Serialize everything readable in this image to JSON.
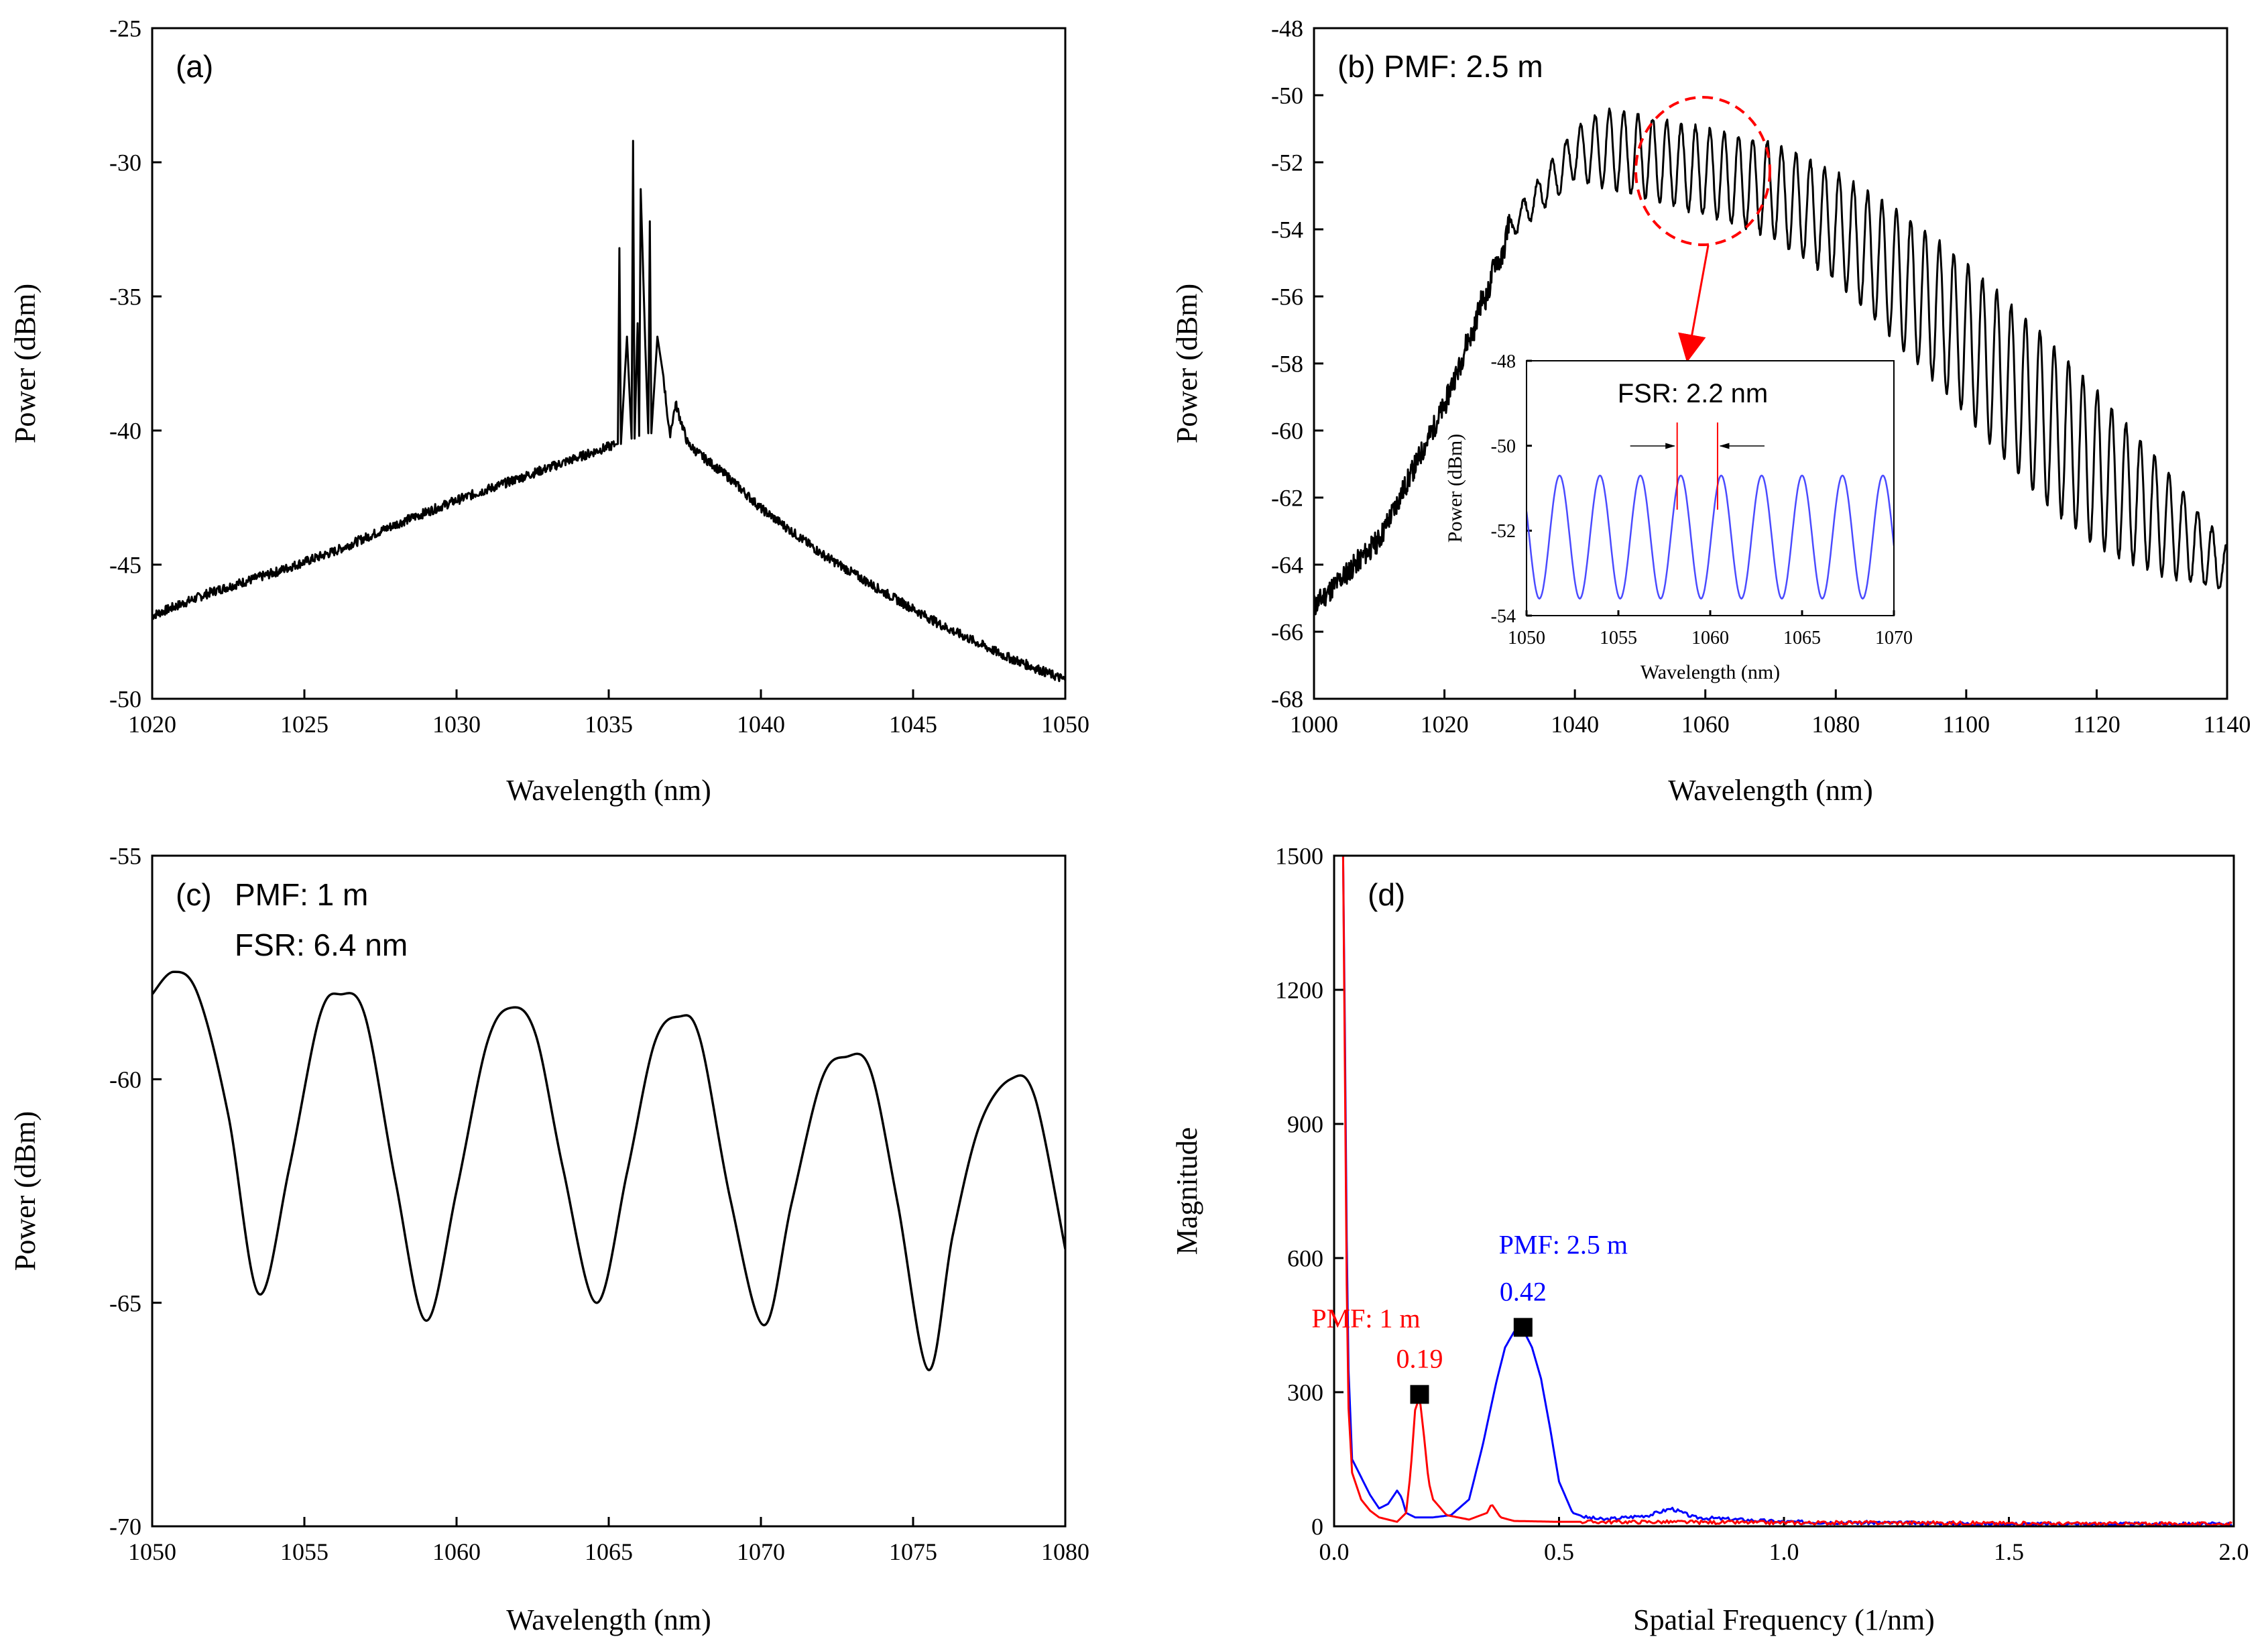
{
  "chart_data": [
    {
      "type": "line",
      "panel": "(a)",
      "xlabel": "Wavelength (nm)",
      "ylabel": "Power (dBm)",
      "xlim": [
        1020,
        1050
      ],
      "ylim": [
        -50,
        -25
      ],
      "xticks": [
        1020,
        1025,
        1030,
        1035,
        1040,
        1045,
        1050
      ],
      "yticks": [
        -50,
        -45,
        -40,
        -35,
        -30,
        -25
      ],
      "series": [
        {
          "color": "#000000",
          "x": [
            1020,
            1022,
            1024,
            1026,
            1028,
            1030,
            1032,
            1034,
            1035,
            1035.3,
            1035.35,
            1035.4,
            1035.6,
            1035.75,
            1035.8,
            1035.85,
            1035.95,
            1036.0,
            1036.05,
            1036.2,
            1036.3,
            1036.35,
            1036.4,
            1036.6,
            1036.8,
            1037.0,
            1037.2,
            1037.6,
            1038,
            1039,
            1040,
            1042,
            1044,
            1046,
            1048,
            1050
          ],
          "y": [
            -46.9,
            -46.0,
            -45.3,
            -44.5,
            -43.5,
            -42.6,
            -41.8,
            -41.0,
            -40.6,
            -40.5,
            -33.2,
            -40.5,
            -36.5,
            -40.3,
            -29.2,
            -40.3,
            -36.0,
            -40.2,
            -31.0,
            -36.8,
            -40.1,
            -32.2,
            -40.1,
            -36.5,
            -38.0,
            -40.2,
            -39.0,
            -40.5,
            -40.9,
            -41.8,
            -42.9,
            -44.6,
            -46.0,
            -47.3,
            -48.4,
            -49.3
          ]
        }
      ],
      "annotations": []
    },
    {
      "type": "line",
      "panel": "(b) PMF: 2.5 m",
      "xlabel": "Wavelength (nm)",
      "ylabel": "Power (dBm)",
      "xlim": [
        1000,
        1140
      ],
      "ylim": [
        -68,
        -48
      ],
      "xticks": [
        1000,
        1020,
        1040,
        1060,
        1080,
        1100,
        1120,
        1140
      ],
      "yticks": [
        -68,
        -66,
        -64,
        -62,
        -60,
        -58,
        -56,
        -54,
        -52,
        -50,
        -48
      ],
      "series": [
        {
          "color": "#000000",
          "x": [
            1000,
            1010,
            1020,
            1030,
            1040,
            1045,
            1050,
            1060,
            1070,
            1080,
            1090,
            1100,
            1110,
            1120,
            1130,
            1140
          ],
          "y_envelope_top": [
            -65.0,
            -63.0,
            -59.0,
            -53.5,
            -51.0,
            -50.4,
            -50.6,
            -51.0,
            -51.4,
            -52.3,
            -53.5,
            -55.0,
            -56.8,
            -58.8,
            -61.0,
            -63.5
          ],
          "y_envelope_bottom": [
            -65.5,
            -63.5,
            -59.5,
            -54.5,
            -52.5,
            -52.8,
            -53.0,
            -53.6,
            -54.2,
            -55.5,
            -57.5,
            -59.5,
            -61.8,
            -63.5,
            -64.3,
            -64.8
          ],
          "fringe_period_nm": 2.2
        }
      ],
      "annotations": [
        "PMF: 2.5 m"
      ],
      "inset": {
        "title": "FSR: 2.2 nm",
        "xlabel": "Wavelength (nm)",
        "ylabel": "Power (dBm)",
        "xlim": [
          1050,
          1070
        ],
        "ylim": [
          -54,
          -48
        ],
        "xticks": [
          1050,
          1055,
          1060,
          1065,
          1070
        ],
        "yticks": [
          -54,
          -52,
          -50,
          -48
        ],
        "series": [
          {
            "color": "#4a4aff",
            "period_nm": 2.2,
            "y_top": -50.7,
            "y_bottom": -53.6
          }
        ],
        "markers_x": [
          1058.2,
          1060.4
        ]
      }
    },
    {
      "type": "line",
      "panel": "(c)",
      "xlabel": "Wavelength (nm)",
      "ylabel": "Power (dBm)",
      "xlim": [
        1050,
        1080
      ],
      "ylim": [
        -70,
        -55
      ],
      "xticks": [
        1050,
        1055,
        1060,
        1065,
        1070,
        1075,
        1080
      ],
      "yticks": [
        -70,
        -65,
        -60,
        -55
      ],
      "annotations": [
        "PMF: 1 m",
        "FSR: 6.4 nm"
      ],
      "series": [
        {
          "color": "#000000",
          "x": [
            1050,
            1050.7,
            1051.5,
            1052.5,
            1053.5,
            1054.5,
            1055.5,
            1056.2,
            1057.0,
            1058.0,
            1059.0,
            1060.0,
            1061.0,
            1061.8,
            1062.6,
            1063.5,
            1064.6,
            1065.6,
            1066.5,
            1067.3,
            1068.0,
            1069.0,
            1070.1,
            1071.0,
            1072.0,
            1072.8,
            1073.6,
            1074.5,
            1075.5,
            1076.3,
            1077.2,
            1078.2,
            1079.0,
            1080.0
          ],
          "y": [
            -58.1,
            -57.6,
            -58.1,
            -60.8,
            -64.8,
            -62.0,
            -58.6,
            -58.1,
            -58.6,
            -62.3,
            -65.4,
            -62.5,
            -59.2,
            -58.4,
            -59.0,
            -62.0,
            -65.0,
            -62.1,
            -59.2,
            -58.6,
            -59.1,
            -62.7,
            -65.5,
            -62.8,
            -60.0,
            -59.5,
            -59.8,
            -62.8,
            -66.5,
            -63.5,
            -61.0,
            -60.0,
            -60.4,
            -63.8
          ]
        }
      ]
    },
    {
      "type": "line",
      "panel": "(d)",
      "xlabel": "Spatial Frequency (1/nm)",
      "ylabel": "Magnitude",
      "xlim": [
        0,
        2.0
      ],
      "ylim": [
        0,
        1500
      ],
      "xticks": [
        0.0,
        0.5,
        1.0,
        1.5,
        2.0
      ],
      "yticks": [
        0,
        300,
        600,
        900,
        1200,
        1500
      ],
      "series": [
        {
          "name": "PMF: 2.5 m",
          "color": "#0000ff",
          "x": [
            0.02,
            0.025,
            0.03,
            0.04,
            0.06,
            0.08,
            0.1,
            0.12,
            0.14,
            0.15,
            0.16,
            0.18,
            0.22,
            0.26,
            0.3,
            0.33,
            0.36,
            0.38,
            0.4,
            0.42,
            0.44,
            0.46,
            0.48,
            0.5,
            0.53,
            0.56,
            0.6,
            0.7,
            0.75,
            0.8,
            0.9,
            1.0,
            1.2,
            1.5,
            1.8,
            2.0
          ],
          "y": [
            1500,
            1000,
            400,
            150,
            110,
            70,
            40,
            50,
            80,
            65,
            30,
            20,
            20,
            25,
            60,
            180,
            320,
            400,
            435,
            440,
            400,
            330,
            220,
            100,
            30,
            20,
            15,
            25,
            40,
            20,
            15,
            10,
            8,
            5,
            5,
            5
          ]
        },
        {
          "name": "PMF: 1 m",
          "color": "#ff0000",
          "x": [
            0.02,
            0.025,
            0.03,
            0.04,
            0.06,
            0.08,
            0.1,
            0.12,
            0.14,
            0.16,
            0.17,
            0.18,
            0.19,
            0.2,
            0.21,
            0.22,
            0.25,
            0.3,
            0.34,
            0.35,
            0.37,
            0.4,
            0.5,
            0.7,
            1.0,
            1.3,
            1.6,
            2.0
          ],
          "y": [
            1500,
            900,
            300,
            120,
            60,
            35,
            20,
            15,
            10,
            30,
            120,
            260,
            290,
            200,
            100,
            60,
            25,
            15,
            30,
            50,
            20,
            12,
            10,
            10,
            8,
            8,
            6,
            5
          ]
        }
      ],
      "annotations": [
        {
          "label": "PMF: 2.5 m",
          "value": "0.42",
          "x": 0.42,
          "y": 445,
          "color": "#0000ff"
        },
        {
          "label": "PMF: 1 m",
          "value": "0.19",
          "x": 0.19,
          "y": 295,
          "color": "#ff0000"
        }
      ]
    }
  ]
}
